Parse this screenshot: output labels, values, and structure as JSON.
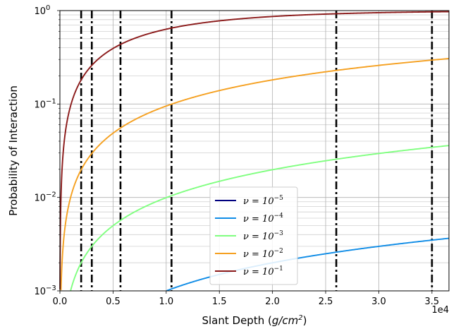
{
  "chart_data": {
    "type": "line",
    "xlabel": "Slant Depth (g/cm²)",
    "xlabel_parts": {
      "prefix": "Slant Depth (",
      "var": "g/cm",
      "sup": "2",
      "suffix": ")"
    },
    "ylabel": "Probability of Interaction",
    "x_multiplier_label": "1e4",
    "xlim": [
      0,
      36600
    ],
    "ylim": [
      0.001,
      1
    ],
    "yscale": "log",
    "grid": true,
    "legend_position": "lower-center",
    "x_ticks": [
      {
        "value": 0,
        "label": "0.0"
      },
      {
        "value": 5000,
        "label": "0.5"
      },
      {
        "value": 10000,
        "label": "1.0"
      },
      {
        "value": 15000,
        "label": "1.5"
      },
      {
        "value": 20000,
        "label": "2.0"
      },
      {
        "value": 25000,
        "label": "2.5"
      },
      {
        "value": 30000,
        "label": "3.0"
      },
      {
        "value": 35000,
        "label": "3.5"
      }
    ],
    "y_ticks": [
      {
        "value": 0.001,
        "base": "10",
        "exp": "−3"
      },
      {
        "value": 0.01,
        "base": "10",
        "exp": "−2"
      },
      {
        "value": 0.1,
        "base": "10",
        "exp": "−1"
      },
      {
        "value": 1,
        "base": "10",
        "exp": "0"
      }
    ],
    "vertical_lines": [
      2000,
      3000,
      5700,
      10500,
      26000,
      35000
    ],
    "series": [
      {
        "name": "ν = 10⁻⁵",
        "legend_base": "ν = 10",
        "legend_exp": "−5",
        "color": "#00007f",
        "nu": 1e-05
      },
      {
        "name": "ν = 10⁻⁴",
        "legend_base": "ν = 10",
        "legend_exp": "−4",
        "color": "#0f8ce6",
        "nu": 0.0001
      },
      {
        "name": "ν = 10⁻³",
        "legend_base": "ν = 10",
        "legend_exp": "−3",
        "color": "#80ff80",
        "nu": 0.001
      },
      {
        "name": "ν = 10⁻²",
        "legend_base": "ν = 10",
        "legend_exp": "−2",
        "color": "#f5a020",
        "nu": 0.01
      },
      {
        "name": "ν = 10⁻¹",
        "legend_base": "ν = 10",
        "legend_exp": "−1",
        "color": "#8b1a1a",
        "nu": 0.1
      }
    ],
    "formula": "P = 1 - exp(-nu * x / 1000)"
  }
}
